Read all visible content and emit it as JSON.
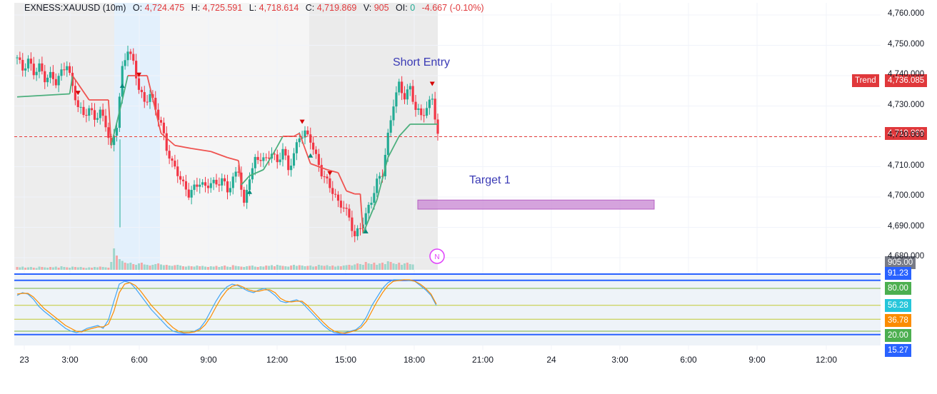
{
  "legend": {
    "symbol": "EXNESS:XAUUSD (10m)",
    "o_label": "O:",
    "o": "4,724.475",
    "h_label": "H:",
    "h": "4,725.591",
    "l_label": "L:",
    "l": "4,718.614",
    "c_label": "C:",
    "c": "4,719.869",
    "v_label": "V:",
    "v": "905",
    "oi_label": "OI:",
    "oi": "0",
    "change": "-4.667",
    "change_pct": "(-0.10%)"
  },
  "annotations": {
    "short_entry": "Short Entry",
    "target1": "Target 1"
  },
  "tags": {
    "trend_label": "Trend",
    "trend_value": "4,736.085",
    "last_price": "4,719.869",
    "volume": "905.00",
    "osc_9123": "91.23",
    "osc_80": "80.00",
    "osc_5628": "56.28",
    "osc_3678": "36.78",
    "osc_20": "20.00",
    "osc_1527": "15.27"
  },
  "colors": {
    "up": "#22ab94",
    "down": "#f23645",
    "trend_red": "#ef5350",
    "trend_green": "#4caf7d",
    "session_shade": "#e6e6e6",
    "blue_shade": "#e3f0fc",
    "target_box": "#ce93d8",
    "stoch_k": "#42a5f5",
    "stoch_d": "#fb8c00",
    "osc_line": "#2962ff",
    "osc_level": "#7cb342"
  },
  "chart_data": {
    "type": "candlestick",
    "symbol": "EXNESS:XAUUSD",
    "timeframe": "10m",
    "y_ticks": [
      "4,760.000",
      "4,750.000",
      "4,740.000",
      "4,730.000",
      "4,720.000",
      "4,710.000",
      "4,700.000",
      "4,690.000",
      "4,680.000"
    ],
    "ylim": [
      4676,
      4764
    ],
    "x_ticks": [
      "23",
      "3:00",
      "6:00",
      "9:00",
      "12:00",
      "15:00",
      "18:00",
      "21:00",
      "24",
      "3:00",
      "6:00",
      "9:00",
      "12:00"
    ],
    "last_price": 4719.869,
    "trend_value": 4736.085,
    "target_zone": [
      4696,
      4699
    ],
    "close_path": [
      [
        0,
        4746
      ],
      [
        2,
        4742
      ],
      [
        4,
        4745
      ],
      [
        6,
        4741
      ],
      [
        8,
        4743
      ],
      [
        10,
        4739
      ],
      [
        12,
        4740
      ],
      [
        14,
        4738
      ],
      [
        16,
        4741
      ],
      [
        18,
        4744
      ],
      [
        20,
        4736
      ],
      [
        22,
        4730
      ],
      [
        24,
        4727
      ],
      [
        26,
        4729
      ],
      [
        28,
        4726
      ],
      [
        30,
        4728
      ],
      [
        32,
        4724
      ],
      [
        34,
        4716
      ],
      [
        36,
        4724
      ],
      [
        38,
        4742
      ],
      [
        40,
        4749
      ],
      [
        42,
        4744
      ],
      [
        44,
        4736
      ],
      [
        46,
        4731
      ],
      [
        48,
        4734
      ],
      [
        50,
        4729
      ],
      [
        52,
        4724
      ],
      [
        54,
        4716
      ],
      [
        56,
        4711
      ],
      [
        58,
        4708
      ],
      [
        60,
        4704
      ],
      [
        62,
        4701
      ],
      [
        64,
        4703
      ],
      [
        66,
        4705
      ],
      [
        68,
        4703
      ],
      [
        70,
        4705
      ],
      [
        72,
        4704
      ],
      [
        74,
        4706
      ],
      [
        76,
        4702
      ],
      [
        78,
        4706
      ],
      [
        80,
        4709
      ],
      [
        82,
        4697
      ],
      [
        84,
        4707
      ],
      [
        86,
        4712
      ],
      [
        88,
        4713
      ],
      [
        90,
        4712
      ],
      [
        92,
        4715
      ],
      [
        94,
        4711
      ],
      [
        96,
        4716
      ],
      [
        98,
        4709
      ],
      [
        100,
        4714
      ],
      [
        102,
        4720
      ],
      [
        104,
        4721
      ],
      [
        106,
        4719
      ],
      [
        108,
        4713
      ],
      [
        110,
        4708
      ],
      [
        112,
        4705
      ],
      [
        114,
        4702
      ],
      [
        116,
        4698
      ],
      [
        118,
        4697
      ],
      [
        120,
        4693
      ],
      [
        122,
        4687
      ],
      [
        124,
        4690
      ],
      [
        126,
        4694
      ],
      [
        128,
        4699
      ],
      [
        130,
        4705
      ],
      [
        132,
        4708
      ],
      [
        134,
        4720
      ],
      [
        136,
        4731
      ],
      [
        138,
        4737
      ],
      [
        140,
        4733
      ],
      [
        142,
        4736
      ],
      [
        144,
        4729
      ],
      [
        146,
        4727
      ],
      [
        148,
        4729
      ],
      [
        150,
        4733
      ],
      [
        152,
        4720
      ]
    ],
    "trend_line": [
      [
        0,
        4733,
        "g"
      ],
      [
        19,
        4734,
        "g"
      ],
      [
        20,
        4740,
        "r"
      ],
      [
        26,
        4732,
        "r"
      ],
      [
        33,
        4732,
        "r"
      ],
      [
        34,
        4717,
        "g"
      ],
      [
        38,
        4732,
        "g"
      ],
      [
        40,
        4740,
        "r"
      ],
      [
        47,
        4740,
        "r"
      ],
      [
        52,
        4721,
        "r"
      ],
      [
        57,
        4717,
        "r"
      ],
      [
        63,
        4716,
        "r"
      ],
      [
        70,
        4715,
        "r"
      ],
      [
        76,
        4713,
        "r"
      ],
      [
        80,
        4712,
        "r"
      ],
      [
        81,
        4704,
        "g"
      ],
      [
        84,
        4707,
        "g"
      ],
      [
        89,
        4709,
        "g"
      ],
      [
        93,
        4715,
        "g"
      ],
      [
        96,
        4720,
        "r"
      ],
      [
        100,
        4720,
        "r"
      ],
      [
        102,
        4721,
        "r"
      ],
      [
        106,
        4711,
        "r"
      ],
      [
        112,
        4709,
        "r"
      ],
      [
        116,
        4708,
        "r"
      ],
      [
        119,
        4702,
        "r"
      ],
      [
        122,
        4701,
        "r"
      ],
      [
        124,
        4701,
        "r"
      ],
      [
        125,
        4688,
        "g"
      ],
      [
        130,
        4699,
        "g"
      ],
      [
        134,
        4713,
        "g"
      ],
      [
        138,
        4720,
        "g"
      ],
      [
        142,
        4724,
        "g"
      ],
      [
        152,
        4724,
        "g"
      ]
    ],
    "markers": [
      [
        22,
        "down"
      ],
      [
        44,
        "down"
      ],
      [
        103,
        "down"
      ],
      [
        113,
        "down"
      ],
      [
        150,
        "down"
      ],
      [
        38,
        "up"
      ],
      [
        84,
        "up"
      ],
      [
        106,
        "up"
      ],
      [
        126,
        "up"
      ]
    ],
    "volume": [
      8,
      7,
      9,
      6,
      7,
      8,
      6,
      5,
      9,
      8,
      7,
      6,
      8,
      7,
      9,
      6,
      10,
      8,
      7,
      6,
      9,
      8,
      7,
      8,
      6,
      5,
      7,
      6,
      8,
      7,
      9,
      8,
      7,
      6,
      22,
      60,
      40,
      30,
      25,
      20,
      18,
      20,
      16,
      14,
      18,
      20,
      15,
      14,
      12,
      14,
      16,
      18,
      15,
      13,
      14,
      12,
      11,
      13,
      14,
      12,
      10,
      9,
      11,
      10,
      9,
      12,
      10,
      11,
      9,
      8,
      10,
      9,
      11,
      8,
      10,
      12,
      9,
      8,
      13,
      11,
      10,
      9,
      8,
      10,
      11,
      12,
      9,
      8,
      10,
      9,
      12,
      11,
      13,
      10,
      14,
      12,
      11,
      10,
      9,
      12,
      14,
      11,
      13,
      12,
      10,
      11,
      12,
      9,
      10,
      14,
      12,
      11,
      13,
      10,
      12,
      9,
      11,
      10,
      12,
      13,
      14,
      12,
      15,
      18,
      16,
      14,
      22,
      18,
      16,
      20,
      14,
      18,
      20,
      16,
      24,
      22,
      18,
      16,
      20,
      14,
      18,
      20,
      16,
      15
    ],
    "stoch_k": [
      70,
      74,
      72,
      65,
      55,
      48,
      42,
      36,
      30,
      24,
      20,
      18,
      20,
      24,
      26,
      28,
      24,
      36,
      62,
      86,
      90,
      88,
      80,
      70,
      60,
      50,
      42,
      34,
      26,
      20,
      18,
      17,
      18,
      20,
      24,
      34,
      48,
      62,
      74,
      82,
      86,
      84,
      80,
      76,
      74,
      78,
      80,
      76,
      70,
      62,
      60,
      62,
      64,
      60,
      52,
      44,
      36,
      28,
      22,
      18,
      17,
      18,
      20,
      22,
      28,
      40,
      56,
      68,
      80,
      88,
      92,
      92,
      92,
      91,
      90,
      84,
      78,
      70,
      56
    ],
    "stoch_d": [
      72,
      73,
      73,
      68,
      60,
      52,
      46,
      40,
      34,
      28,
      24,
      20,
      19,
      22,
      24,
      26,
      26,
      30,
      48,
      74,
      86,
      88,
      84,
      76,
      66,
      56,
      48,
      40,
      32,
      25,
      20,
      18,
      18,
      19,
      22,
      29,
      40,
      54,
      67,
      77,
      83,
      85,
      82,
      78,
      76,
      76,
      78,
      78,
      74,
      66,
      62,
      61,
      62,
      62,
      56,
      48,
      40,
      32,
      25,
      20,
      18,
      17,
      19,
      21,
      25,
      34,
      48,
      62,
      74,
      84,
      90,
      91,
      92,
      92,
      90,
      86,
      80,
      72,
      58
    ],
    "osc_levels": [
      91.23,
      80.0,
      56.28,
      36.78,
      20.0,
      15.27
    ]
  }
}
